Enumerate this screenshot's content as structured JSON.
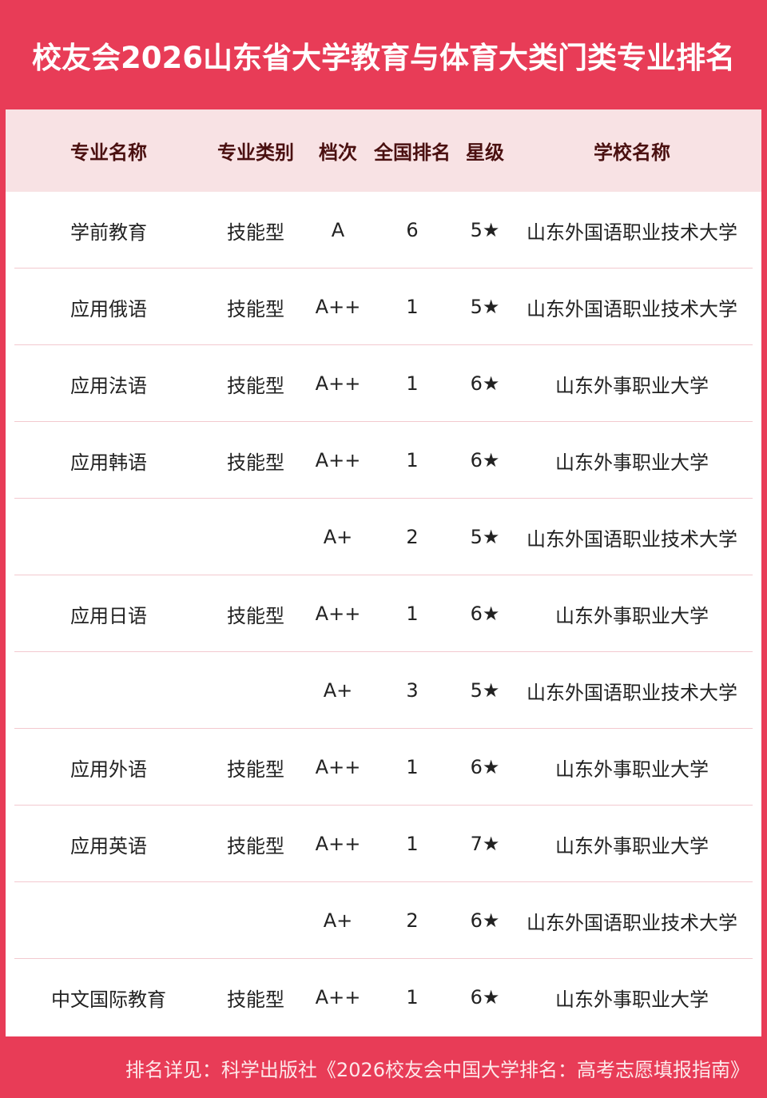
{
  "title": "校友会2026山东省大学教育与体育大类门类专业排名",
  "headers": [
    "专业名称",
    "专业类别",
    "档次",
    "全国排名",
    "星级",
    "学校名称"
  ],
  "rows": [
    [
      "学前教育",
      "技能型",
      "A",
      "6",
      "5★",
      "山东外国语职业技术大学"
    ],
    [
      "应用俄语",
      "技能型",
      "A++",
      "1",
      "5★",
      "山东外国语职业技术大学"
    ],
    [
      "应用法语",
      "技能型",
      "A++",
      "1",
      "6★",
      "山东外事职业大学"
    ],
    [
      "应用韩语",
      "技能型",
      "A++",
      "1",
      "6★",
      "山东外事职业大学"
    ],
    [
      "",
      "",
      "A+",
      "2",
      "5★",
      "山东外国语职业技术大学"
    ],
    [
      "应用日语",
      "技能型",
      "A++",
      "1",
      "6★",
      "山东外事职业大学"
    ],
    [
      "",
      "",
      "A+",
      "3",
      "5★",
      "山东外国语职业技术大学"
    ],
    [
      "应用外语",
      "技能型",
      "A++",
      "1",
      "6★",
      "山东外事职业大学"
    ],
    [
      "应用英语",
      "技能型",
      "A++",
      "1",
      "7★",
      "山东外事职业大学"
    ],
    [
      "",
      "",
      "A+",
      "2",
      "6★",
      "山东外国语职业技术大学"
    ],
    [
      "中文国际教育",
      "技能型",
      "A++",
      "1",
      "6★",
      "山东外事职业大学"
    ]
  ],
  "footer": "排名详见：科学出版社《2026校友会中国大学排名：高考志愿填报指南》",
  "colors": {
    "frame": "#e83c57",
    "header_bg": "#f8e2e4"
  }
}
